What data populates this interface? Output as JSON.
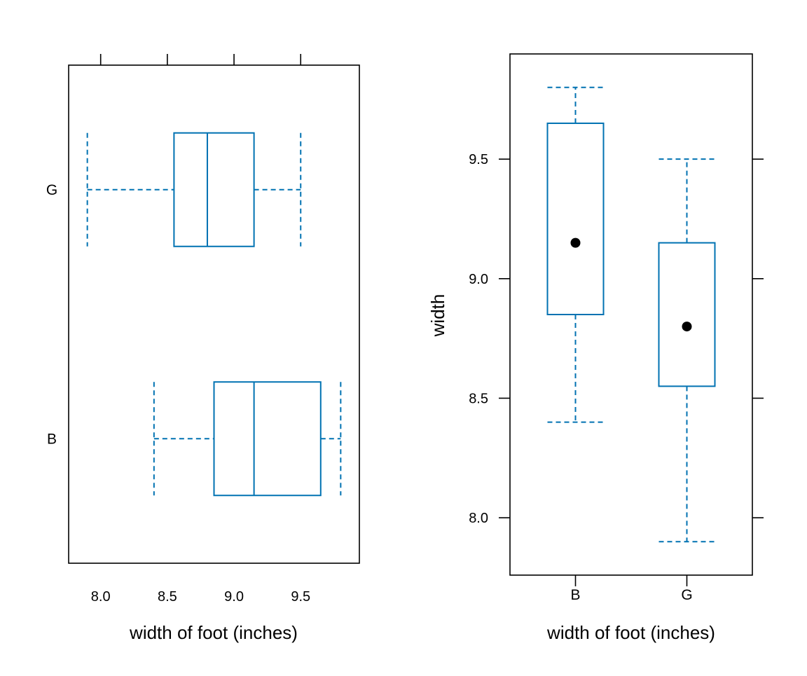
{
  "colors": {
    "box": "#0072B2",
    "point": "#000000",
    "frame": "#000000"
  },
  "chart_data": [
    {
      "type": "boxplot",
      "orientation": "horizontal",
      "title": "",
      "xlabel": "width of foot (inches)",
      "ylabel": "",
      "xlim": [
        7.76,
        9.94
      ],
      "x_ticks": [
        8.0,
        8.5,
        9.0,
        9.5
      ],
      "x_tick_labels": [
        "8.0",
        "8.5",
        "9.0",
        "9.5"
      ],
      "categories": [
        "B",
        "G"
      ],
      "boxes": [
        {
          "name": "B",
          "min": 8.4,
          "q1": 8.85,
          "median": 9.15,
          "q3": 9.65,
          "max": 9.8
        },
        {
          "name": "G",
          "min": 7.9,
          "q1": 8.55,
          "median": 8.8,
          "q3": 9.15,
          "max": 9.5
        }
      ]
    },
    {
      "type": "boxplot",
      "orientation": "vertical",
      "title": "",
      "xlabel": "width of foot (inches)",
      "ylabel": "width",
      "ylim": [
        7.76,
        9.94
      ],
      "y_ticks": [
        8.0,
        8.5,
        9.0,
        9.5
      ],
      "y_tick_labels": [
        "8.0",
        "8.5",
        "9.0",
        "9.5"
      ],
      "categories": [
        "B",
        "G"
      ],
      "boxes": [
        {
          "name": "B",
          "min": 8.4,
          "q1": 8.85,
          "median": 9.15,
          "q3": 9.65,
          "max": 9.8
        },
        {
          "name": "G",
          "min": 7.9,
          "q1": 8.55,
          "median": 8.8,
          "q3": 9.15,
          "max": 9.5
        }
      ]
    }
  ]
}
